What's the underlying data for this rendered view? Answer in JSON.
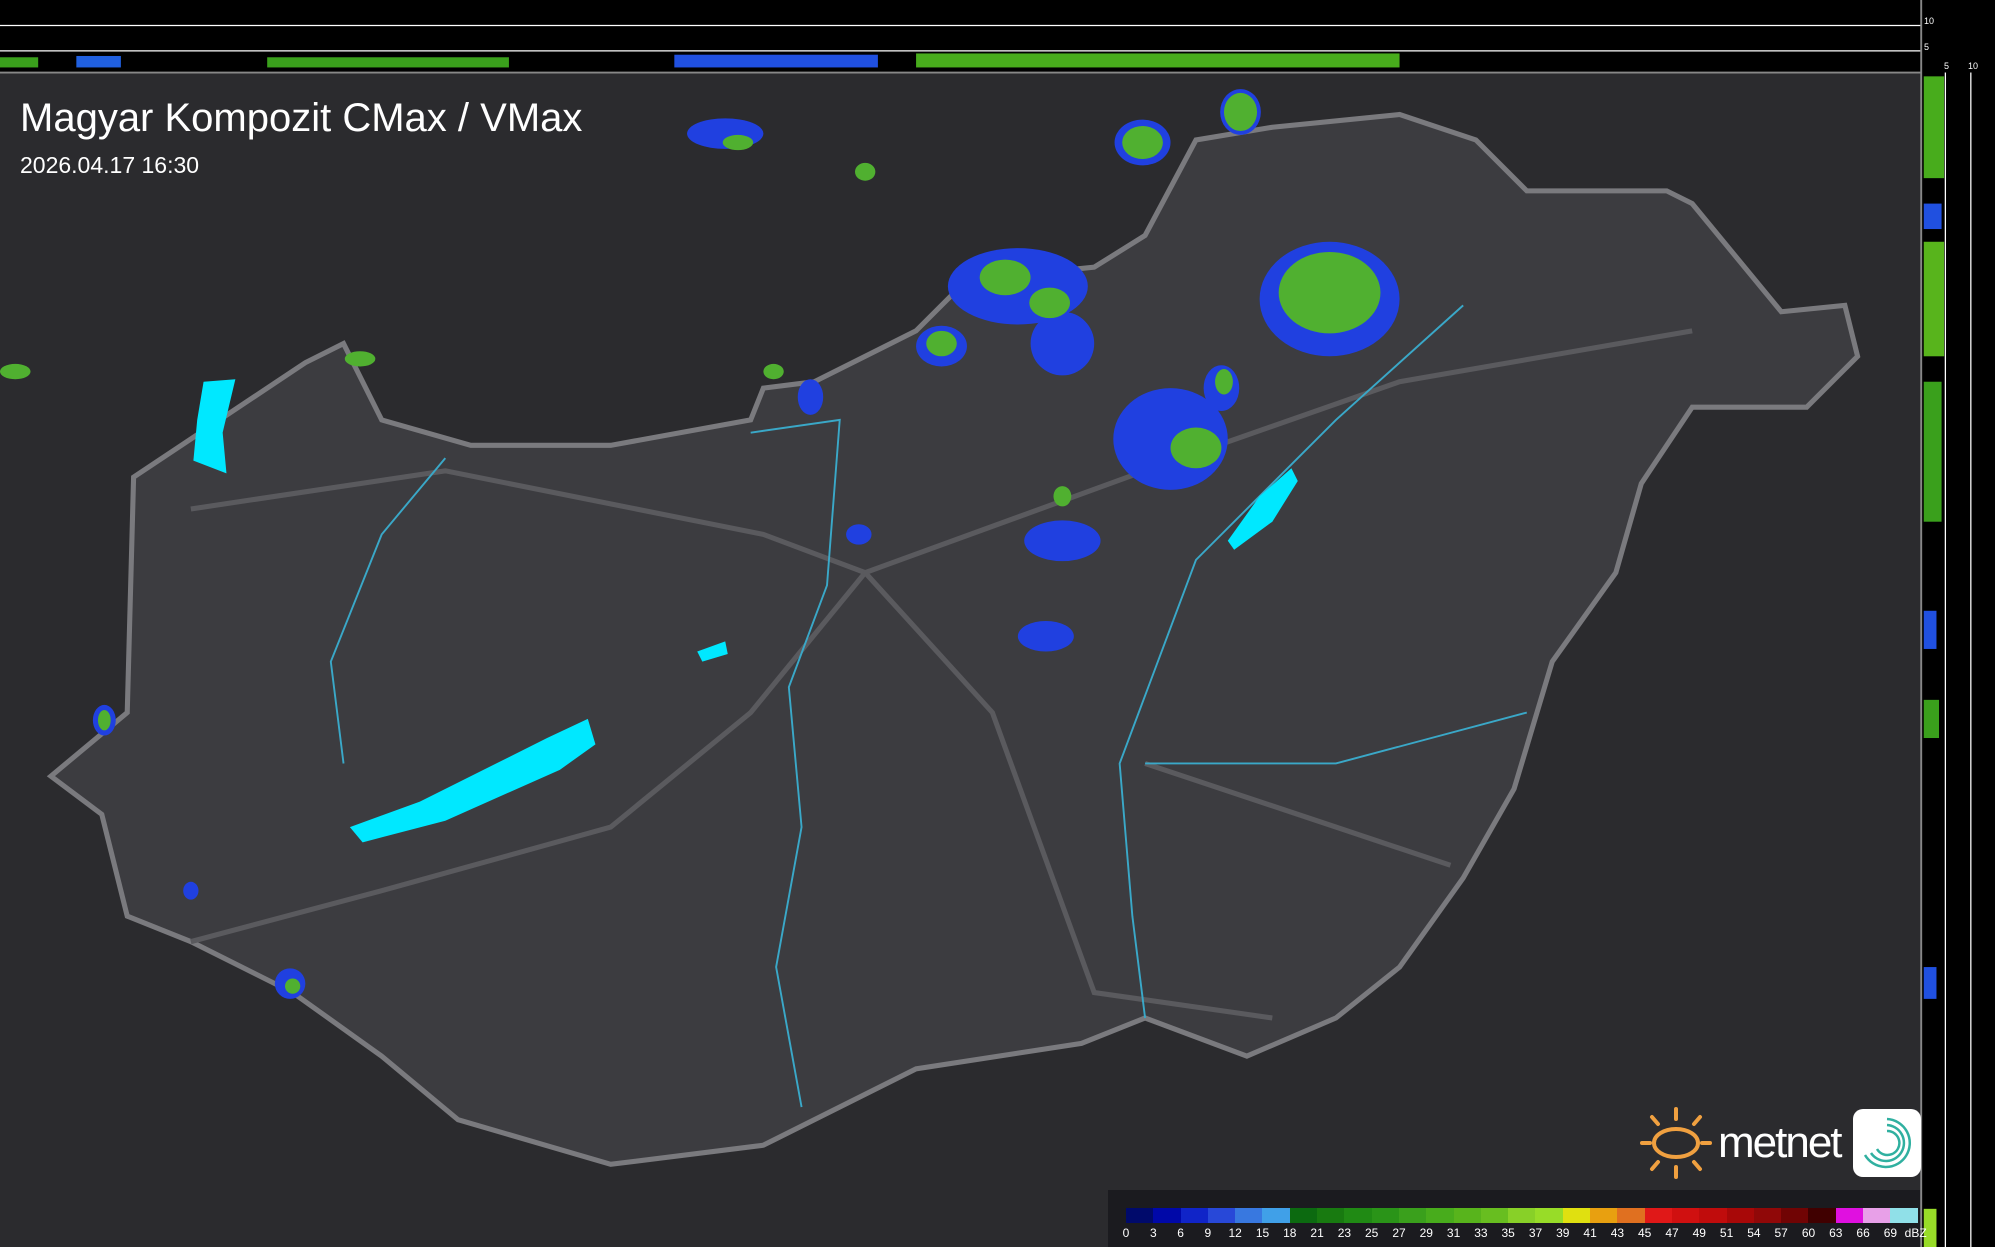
{
  "header": {
    "title": "Magyar Kompozit CMax / VMax",
    "timestamp": "2026.04.17 16:30"
  },
  "side_profile": {
    "vertical_ticks": [
      "10",
      "5"
    ],
    "horizontal_ticks": [
      "5",
      "10"
    ]
  },
  "logo": {
    "text": "metnet",
    "brand_color": "#f0a040"
  },
  "legend": {
    "unit": "dBZ",
    "labels": [
      "0",
      "3",
      "6",
      "9",
      "12",
      "15",
      "18",
      "21",
      "23",
      "25",
      "27",
      "29",
      "31",
      "33",
      "35",
      "37",
      "39",
      "41",
      "43",
      "45",
      "47",
      "49",
      "51",
      "54",
      "57",
      "60",
      "63",
      "66",
      "69"
    ],
    "colors": [
      "#000a6b",
      "#0008a8",
      "#1024c8",
      "#2848d8",
      "#3878e0",
      "#40a0e8",
      "#0c6a10",
      "#187a10",
      "#208a14",
      "#2a9418",
      "#3aa01c",
      "#48ac1c",
      "#58b41c",
      "#68be20",
      "#88d028",
      "#98dc28",
      "#e0e010",
      "#e8a010",
      "#e07020",
      "#e01818",
      "#d01010",
      "#c00c0c",
      "#a80808",
      "#900808",
      "#700404",
      "#400000",
      "#e010e0",
      "#e8a0e8",
      "#90e0e8"
    ]
  },
  "colors": {
    "background": "#2b2b2e",
    "country": "#3c3c40",
    "border": "#7a7a7e",
    "rivers": "#3aa8c8",
    "lakes": "#00e8ff",
    "rain_low": "#2040e0",
    "rain_mid": "#50b030"
  }
}
